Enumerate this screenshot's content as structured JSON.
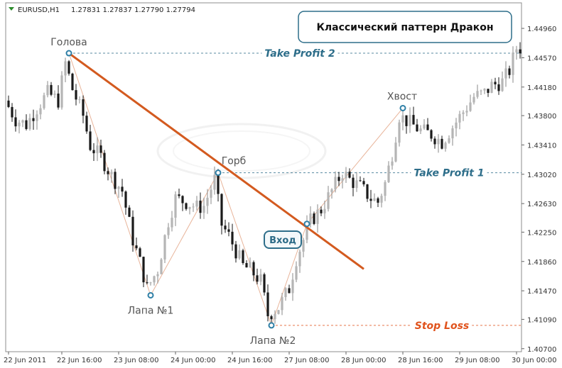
{
  "header": {
    "symbol": "EURUSD,H1",
    "quotes": "1.27831 1.27837 1.27790 1.27794"
  },
  "title": "Классический паттерн Дракон",
  "entry_label": "Вход",
  "colors": {
    "trendline": "#d35a1f",
    "pattern_line": "#e8b49a",
    "take_profit": "#2e6e8a",
    "stop_loss": "#e0531d",
    "bull_candle": "#b5b5b5",
    "bear_candle": "#1a1a1a",
    "point_marker": "#2e7fa6"
  },
  "chart_data": {
    "type": "candlestick",
    "y_ticks": [
      1.4496,
      1.4457,
      1.4418,
      1.438,
      1.4341,
      1.4302,
      1.4263,
      1.4225,
      1.4186,
      1.4147,
      1.4109,
      1.407
    ],
    "ylim": [
      1.4066,
      1.453
    ],
    "x_ticks": [
      {
        "label": "22 Jun 2011",
        "bar": 0
      },
      {
        "label": "22 Jun 16:00",
        "bar": 15
      },
      {
        "label": "23 Jun 08:00",
        "bar": 31
      },
      {
        "label": "24 Jun 00:00",
        "bar": 47
      },
      {
        "label": "24 Jun 16:00",
        "bar": 63
      },
      {
        "label": "27 Jun 08:00",
        "bar": 79
      },
      {
        "label": "28 Jun 00:00",
        "bar": 95
      },
      {
        "label": "28 Jun 16:00",
        "bar": 111
      },
      {
        "label": "29 Jun 08:00",
        "bar": 127
      },
      {
        "label": "30 Jun 00:00",
        "bar": 143
      }
    ],
    "bar_count": 145,
    "pattern_points": [
      {
        "name": "Голова",
        "bar": 17,
        "price": 1.4463
      },
      {
        "name": "Лапа №1",
        "bar": 40,
        "price": 1.4141
      },
      {
        "name": "Горб",
        "bar": 59,
        "price": 1.4304
      },
      {
        "name": "Лапа №2",
        "bar": 74,
        "price": 1.4101
      },
      {
        "name": "Вход",
        "bar": 84,
        "price": 1.4236
      },
      {
        "name": "Хвост",
        "bar": 111,
        "price": 1.439
      }
    ],
    "trendline": {
      "from": {
        "bar": 17,
        "price": 1.4463
      },
      "to": {
        "bar": 100,
        "price": 1.4176
      }
    },
    "levels": [
      {
        "name": "Take Profit 2",
        "price": 1.4463,
        "from_bar": 17,
        "label_bar": 82
      },
      {
        "name": "Take Profit 1",
        "price": 1.4304,
        "from_bar": 59,
        "label_bar": 124
      },
      {
        "name": "Stop Loss",
        "price": 1.4101,
        "from_bar": 74,
        "label_bar": 122
      }
    ],
    "path_anchors": [
      [
        0,
        1.44
      ],
      [
        3,
        1.4375
      ],
      [
        6,
        1.4368
      ],
      [
        9,
        1.439
      ],
      [
        12,
        1.441
      ],
      [
        15,
        1.44
      ],
      [
        17,
        1.445
      ],
      [
        19,
        1.4415
      ],
      [
        22,
        1.438
      ],
      [
        24,
        1.434
      ],
      [
        27,
        1.4325
      ],
      [
        30,
        1.43
      ],
      [
        33,
        1.428
      ],
      [
        36,
        1.4215
      ],
      [
        38,
        1.4185
      ],
      [
        40,
        1.415
      ],
      [
        43,
        1.4175
      ],
      [
        46,
        1.424
      ],
      [
        48,
        1.427
      ],
      [
        51,
        1.4265
      ],
      [
        54,
        1.4258
      ],
      [
        56,
        1.426
      ],
      [
        59,
        1.4295
      ],
      [
        61,
        1.4235
      ],
      [
        63,
        1.422
      ],
      [
        65,
        1.42
      ],
      [
        67,
        1.418
      ],
      [
        69,
        1.4175
      ],
      [
        72,
        1.416
      ],
      [
        74,
        1.4115
      ],
      [
        77,
        1.4125
      ],
      [
        80,
        1.415
      ],
      [
        82,
        1.419
      ],
      [
        84,
        1.4215
      ],
      [
        86,
        1.424
      ],
      [
        89,
        1.4255
      ],
      [
        92,
        1.428
      ],
      [
        95,
        1.4305
      ],
      [
        97,
        1.4295
      ],
      [
        100,
        1.4285
      ],
      [
        103,
        1.427
      ],
      [
        105,
        1.4265
      ],
      [
        107,
        1.429
      ],
      [
        109,
        1.433
      ],
      [
        111,
        1.438
      ],
      [
        114,
        1.437
      ],
      [
        117,
        1.436
      ],
      [
        120,
        1.4355
      ],
      [
        123,
        1.4345
      ],
      [
        126,
        1.4365
      ],
      [
        129,
        1.4385
      ],
      [
        132,
        1.4405
      ],
      [
        135,
        1.441
      ],
      [
        137,
        1.442
      ],
      [
        140,
        1.4425
      ],
      [
        142,
        1.444
      ],
      [
        144,
        1.447
      ]
    ]
  }
}
